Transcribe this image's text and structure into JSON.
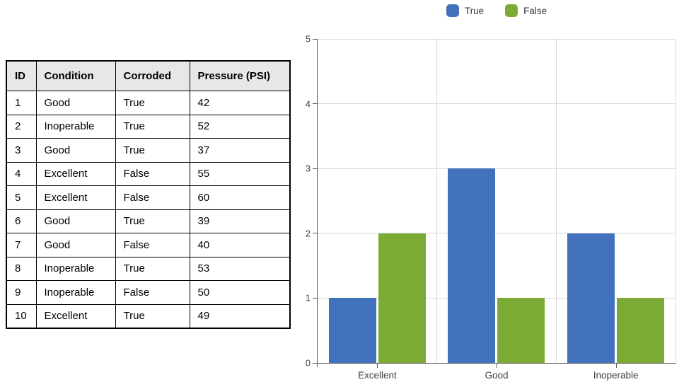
{
  "table": {
    "headers": [
      "ID",
      "Condition",
      "Corroded",
      "Pressure (PSI)"
    ],
    "rows": [
      [
        "1",
        "Good",
        "True",
        "42"
      ],
      [
        "2",
        "Inoperable",
        "True",
        "52"
      ],
      [
        "3",
        "Good",
        "True",
        "37"
      ],
      [
        "4",
        "Excellent",
        "False",
        "55"
      ],
      [
        "5",
        "Excellent",
        "False",
        "60"
      ],
      [
        "6",
        "Good",
        "True",
        "39"
      ],
      [
        "7",
        "Good",
        "False",
        "40"
      ],
      [
        "8",
        "Inoperable",
        "True",
        "53"
      ],
      [
        "9",
        "Inoperable",
        "False",
        "50"
      ],
      [
        "10",
        "Excellent",
        "True",
        "49"
      ]
    ]
  },
  "chart_data": {
    "type": "bar",
    "title": "",
    "xlabel": "",
    "ylabel": "",
    "categories": [
      "Excellent",
      "Good",
      "Inoperable"
    ],
    "series": [
      {
        "name": "True",
        "color": "#4272BC",
        "values": [
          1,
          3,
          2
        ]
      },
      {
        "name": "False",
        "color": "#7BAB35",
        "values": [
          2,
          1,
          1
        ]
      }
    ],
    "ylim": [
      0,
      5
    ],
    "y_ticks": [
      0,
      1,
      2,
      3,
      4,
      5
    ],
    "grid": "on",
    "legend_position": "top",
    "colors": {
      "gridline": "#D9D9D9",
      "axis": "#595959",
      "tick_label": "#404040"
    }
  }
}
